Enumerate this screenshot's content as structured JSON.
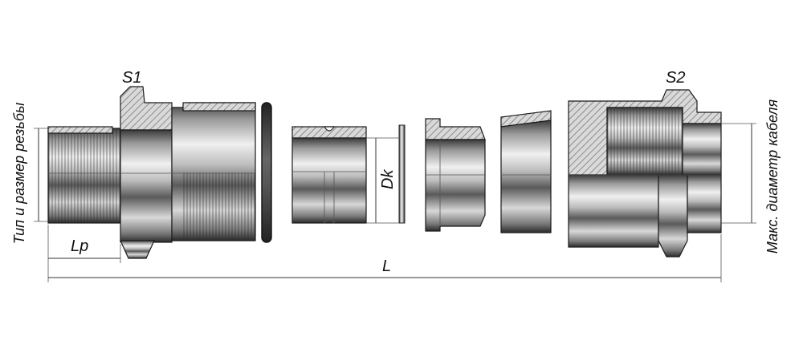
{
  "labels": {
    "thread_type_size": "Тип и размер резьбы",
    "s1": "S1",
    "s2": "S2",
    "lp": "Lp",
    "l": "L",
    "dk": "Dk",
    "max_cable_diameter": "Макс. диаметр кабеля"
  },
  "colors": {
    "steel_dark": "#2a2a2a",
    "steel_mid": "#8a8a8a",
    "steel_light": "#e6e6e6",
    "hatch": "#5a5a5a"
  }
}
